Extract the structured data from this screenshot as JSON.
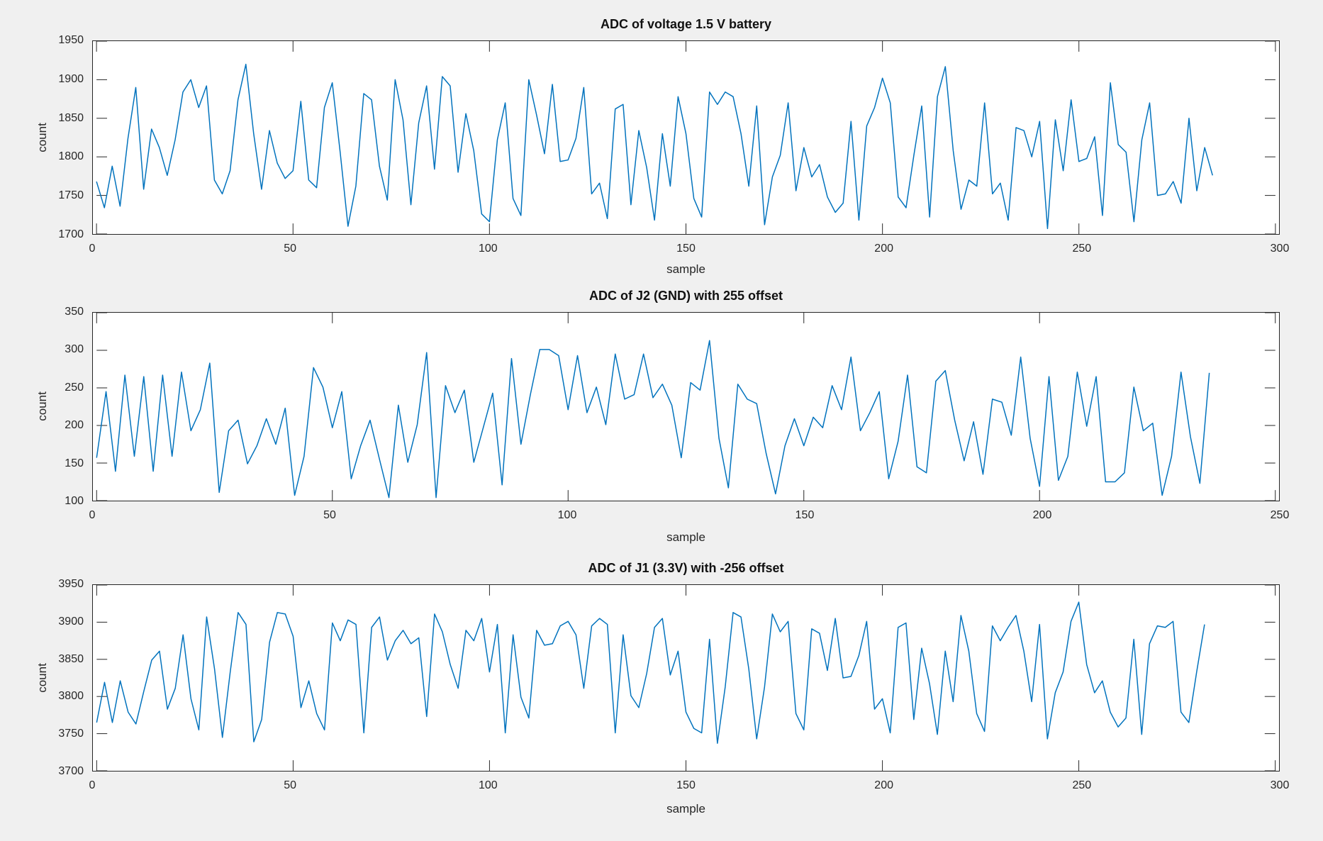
{
  "figure": {
    "background": "#f0f0f0",
    "line_color": "#0072bd",
    "axis_color": "#262626",
    "title_color": "#111111"
  },
  "chart_data": [
    {
      "type": "line",
      "title": "ADC of voltage 1.5 V battery",
      "xlabel": "sample",
      "ylabel": "count",
      "xlim": [
        0,
        300
      ],
      "ylim": [
        1700,
        1950
      ],
      "xticks": [
        0,
        50,
        100,
        150,
        200,
        250,
        300
      ],
      "yticks": [
        1700,
        1750,
        1800,
        1850,
        1900,
        1950
      ],
      "grid": false,
      "legend": null,
      "x_start": 0,
      "x_step": 2,
      "values": [
        1768,
        1734,
        1788,
        1736,
        1824,
        1890,
        1758,
        1836,
        1812,
        1776,
        1822,
        1884,
        1900,
        1864,
        1892,
        1770,
        1752,
        1782,
        1874,
        1920,
        1830,
        1758,
        1834,
        1792,
        1772,
        1782,
        1872,
        1770,
        1760,
        1864,
        1896,
        1806,
        1710,
        1762,
        1882,
        1874,
        1788,
        1744,
        1900,
        1848,
        1738,
        1844,
        1892,
        1784,
        1904,
        1892,
        1780,
        1856,
        1808,
        1726,
        1716,
        1822,
        1870,
        1746,
        1724,
        1900,
        1854,
        1804,
        1894,
        1794,
        1796,
        1824,
        1890,
        1752,
        1766,
        1720,
        1862,
        1868,
        1738,
        1834,
        1786,
        1718,
        1830,
        1762,
        1878,
        1830,
        1746,
        1722,
        1884,
        1868,
        1884,
        1878,
        1830,
        1762,
        1866,
        1712,
        1774,
        1802,
        1870,
        1756,
        1812,
        1774,
        1790,
        1748,
        1728,
        1740,
        1846,
        1718,
        1840,
        1864,
        1902,
        1870,
        1748,
        1734,
        1802,
        1866,
        1722,
        1878,
        1917,
        1808,
        1732,
        1770,
        1762,
        1870,
        1752,
        1766,
        1718,
        1838,
        1834,
        1800,
        1846,
        1707,
        1848,
        1782,
        1874,
        1794,
        1798,
        1826,
        1724,
        1896,
        1816,
        1806,
        1716,
        1822,
        1870,
        1750,
        1752,
        1768,
        1740,
        1850,
        1756,
        1812,
        1776
      ]
    },
    {
      "type": "line",
      "title": "ADC of J2 (GND) with 255 offset",
      "xlabel": "sample",
      "ylabel": "count",
      "xlim": [
        0,
        250
      ],
      "ylim": [
        100,
        350
      ],
      "xticks": [
        0,
        50,
        100,
        150,
        200,
        250
      ],
      "yticks": [
        100,
        150,
        200,
        250,
        300,
        350
      ],
      "grid": false,
      "legend": null,
      "x_start": 0,
      "x_step": 2,
      "values": [
        157,
        245,
        139,
        267,
        159,
        265,
        139,
        267,
        159,
        271,
        193,
        221,
        283,
        111,
        193,
        207,
        149,
        173,
        209,
        175,
        223,
        107,
        159,
        277,
        251,
        197,
        245,
        129,
        173,
        207,
        155,
        104,
        227,
        151,
        201,
        297,
        104,
        253,
        217,
        247,
        151,
        197,
        243,
        121,
        289,
        175,
        241,
        301,
        301,
        293,
        221,
        293,
        217,
        251,
        201,
        295,
        235,
        241,
        295,
        237,
        255,
        227,
        157,
        257,
        247,
        313,
        183,
        117,
        255,
        235,
        229,
        163,
        109,
        173,
        209,
        173,
        211,
        197,
        253,
        221,
        291,
        193,
        217,
        245,
        129,
        179,
        267,
        145,
        137,
        259,
        273,
        207,
        153,
        205,
        135,
        235,
        231,
        187,
        291,
        183,
        119,
        265,
        127,
        159,
        271,
        199,
        265,
        125,
        125,
        137,
        251,
        193,
        203,
        107,
        159,
        271,
        185,
        123,
        270
      ]
    },
    {
      "type": "line",
      "title": "ADC of J1 (3.3V) with -256 offset",
      "xlabel": "sample",
      "ylabel": "count",
      "xlim": [
        0,
        300
      ],
      "ylim": [
        3700,
        3950
      ],
      "xticks": [
        0,
        50,
        100,
        150,
        200,
        250,
        300
      ],
      "yticks": [
        3700,
        3750,
        3800,
        3850,
        3900,
        3950
      ],
      "grid": false,
      "legend": null,
      "x_start": 0,
      "x_step": 2,
      "values": [
        3765,
        3819,
        3765,
        3821,
        3779,
        3763,
        3807,
        3849,
        3861,
        3783,
        3811,
        3883,
        3797,
        3755,
        3907,
        3837,
        3745,
        3833,
        3913,
        3897,
        3739,
        3769,
        3873,
        3913,
        3911,
        3881,
        3785,
        3821,
        3777,
        3755,
        3899,
        3875,
        3903,
        3897,
        3751,
        3893,
        3907,
        3849,
        3875,
        3889,
        3871,
        3879,
        3773,
        3911,
        3887,
        3843,
        3811,
        3889,
        3875,
        3905,
        3833,
        3897,
        3751,
        3883,
        3799,
        3771,
        3889,
        3869,
        3871,
        3895,
        3901,
        3883,
        3811,
        3895,
        3905,
        3897,
        3751,
        3883,
        3801,
        3785,
        3831,
        3893,
        3905,
        3829,
        3861,
        3779,
        3757,
        3751,
        3877,
        3737,
        3813,
        3913,
        3907,
        3837,
        3743,
        3813,
        3911,
        3887,
        3901,
        3777,
        3755,
        3891,
        3885,
        3835,
        3905,
        3825,
        3827,
        3855,
        3901,
        3783,
        3797,
        3751,
        3893,
        3899,
        3769,
        3865,
        3817,
        3749,
        3861,
        3793,
        3909,
        3861,
        3777,
        3753,
        3895,
        3875,
        3893,
        3909,
        3861,
        3793,
        3897,
        3743,
        3805,
        3833,
        3901,
        3927,
        3843,
        3805,
        3821,
        3779,
        3759,
        3771,
        3877,
        3749,
        3871,
        3895,
        3893,
        3901,
        3779,
        3765,
        3833,
        3897
      ]
    }
  ]
}
